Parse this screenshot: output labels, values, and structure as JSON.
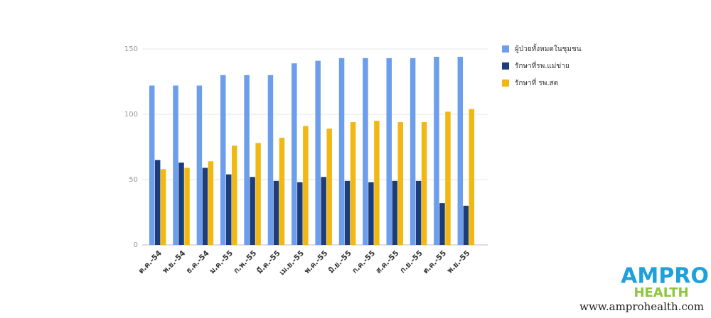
{
  "chart_data": {
    "type": "bar",
    "categories": [
      "ต.ค.-54",
      "พ.ย.-54",
      "ธ.ค.-54",
      "ม.ค.-55",
      "ก.พ.-55",
      "มี.ค.-55",
      "เม.ย.-55",
      "พ.ค.-55",
      "มิ.ย.-55",
      "ก.ค.-55",
      "ส.ค.-55",
      "ก.ย.-55",
      "ต.ค.-55",
      "พ.ย.-55"
    ],
    "series": [
      {
        "name": "ผู้ป่วยทั้งหมดในชุมชน",
        "color": "#6d9eeb",
        "values": [
          122,
          122,
          122,
          130,
          130,
          130,
          139,
          141,
          143,
          143,
          143,
          143,
          144,
          144
        ]
      },
      {
        "name": "รักษาที่รพ.แม่ข่าย",
        "color": "#1c3d7a",
        "values": [
          65,
          63,
          59,
          54,
          52,
          49,
          48,
          52,
          49,
          48,
          49,
          49,
          32,
          30
        ]
      },
      {
        "name": "รักษาที่ รพ.สต",
        "color": "#f1b814",
        "values": [
          58,
          59,
          64,
          76,
          78,
          82,
          91,
          89,
          94,
          95,
          94,
          94,
          102,
          104
        ]
      }
    ],
    "ylim": [
      0,
      150
    ],
    "yticks": [
      0,
      50,
      100,
      150
    ],
    "grid": true,
    "legend": "right"
  },
  "watermark": {
    "logo_top": "AMPRO",
    "logo_bottom": "HEALTH",
    "url": "www.amprohealth.com"
  }
}
